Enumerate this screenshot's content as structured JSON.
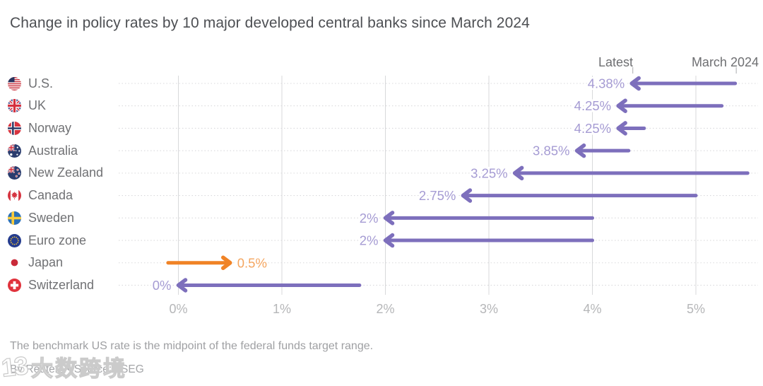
{
  "header": {
    "latest_label": "Latest",
    "march_label": "March 2024",
    "latest_tick_x_value": 4.38,
    "march_tick_x_value": 5.38
  },
  "footnote": "The benchmark US rate is the midpoint of the federal funds target range.",
  "byline": "By Reuters • Source: LSEG",
  "watermark": {
    "logo": "13",
    "text": "大数跨境"
  },
  "colors": {
    "arrow_purple": "#7d6fbc",
    "value_label_purple": "#a59bd3",
    "arrow_orange": "#f08326",
    "value_label_orange": "#f4a55f",
    "gridline": "#d8d9db",
    "row_dash": "#d9d9dc",
    "axis_text": "#b5b6b8",
    "header_tick": "#b9babc"
  },
  "chart_data": {
    "type": "bar",
    "subtype": "arrow-change-chart",
    "title": "Change in policy rates by 10 major developed central banks since March 2024",
    "xlabel": "",
    "ylabel": "",
    "xlim": [
      -0.55,
      5.6
    ],
    "grid": "vertical solid gridlines, dashed horizontal guide per row",
    "legend_position": "top-right (Latest / March 2024)",
    "x_ticks": [
      {
        "v": 0,
        "label": "0%"
      },
      {
        "v": 1,
        "label": "1%"
      },
      {
        "v": 2,
        "label": "2%"
      },
      {
        "v": 3,
        "label": "3%"
      },
      {
        "v": 4,
        "label": "4%"
      },
      {
        "v": 5,
        "label": "5%"
      }
    ],
    "rows": [
      {
        "country": "U.S.",
        "flag": "us",
        "march_2024": 5.38,
        "latest": 4.38,
        "latest_label": "4.38%",
        "color": "purple"
      },
      {
        "country": "UK",
        "flag": "uk",
        "march_2024": 5.25,
        "latest": 4.25,
        "latest_label": "4.25%",
        "color": "purple"
      },
      {
        "country": "Norway",
        "flag": "norway",
        "march_2024": 4.5,
        "latest": 4.25,
        "latest_label": "4.25%",
        "color": "purple"
      },
      {
        "country": "Australia",
        "flag": "australia",
        "march_2024": 4.35,
        "latest": 3.85,
        "latest_label": "3.85%",
        "color": "purple"
      },
      {
        "country": "New Zealand",
        "flag": "new-zealand",
        "march_2024": 5.5,
        "latest": 3.25,
        "latest_label": "3.25%",
        "color": "purple"
      },
      {
        "country": "Canada",
        "flag": "canada",
        "march_2024": 5.0,
        "latest": 2.75,
        "latest_label": "2.75%",
        "color": "purple"
      },
      {
        "country": "Sweden",
        "flag": "sweden",
        "march_2024": 4.0,
        "latest": 2.0,
        "latest_label": "2%",
        "color": "purple"
      },
      {
        "country": "Euro zone",
        "flag": "euro-zone",
        "march_2024": 4.0,
        "latest": 2.0,
        "latest_label": "2%",
        "color": "purple"
      },
      {
        "country": "Japan",
        "flag": "japan",
        "march_2024": -0.1,
        "latest": 0.5,
        "latest_label": "0.5%",
        "color": "orange"
      },
      {
        "country": "Switzerland",
        "flag": "switzerland",
        "march_2024": 1.75,
        "latest": 0.0,
        "latest_label": "0%",
        "color": "purple"
      }
    ]
  }
}
